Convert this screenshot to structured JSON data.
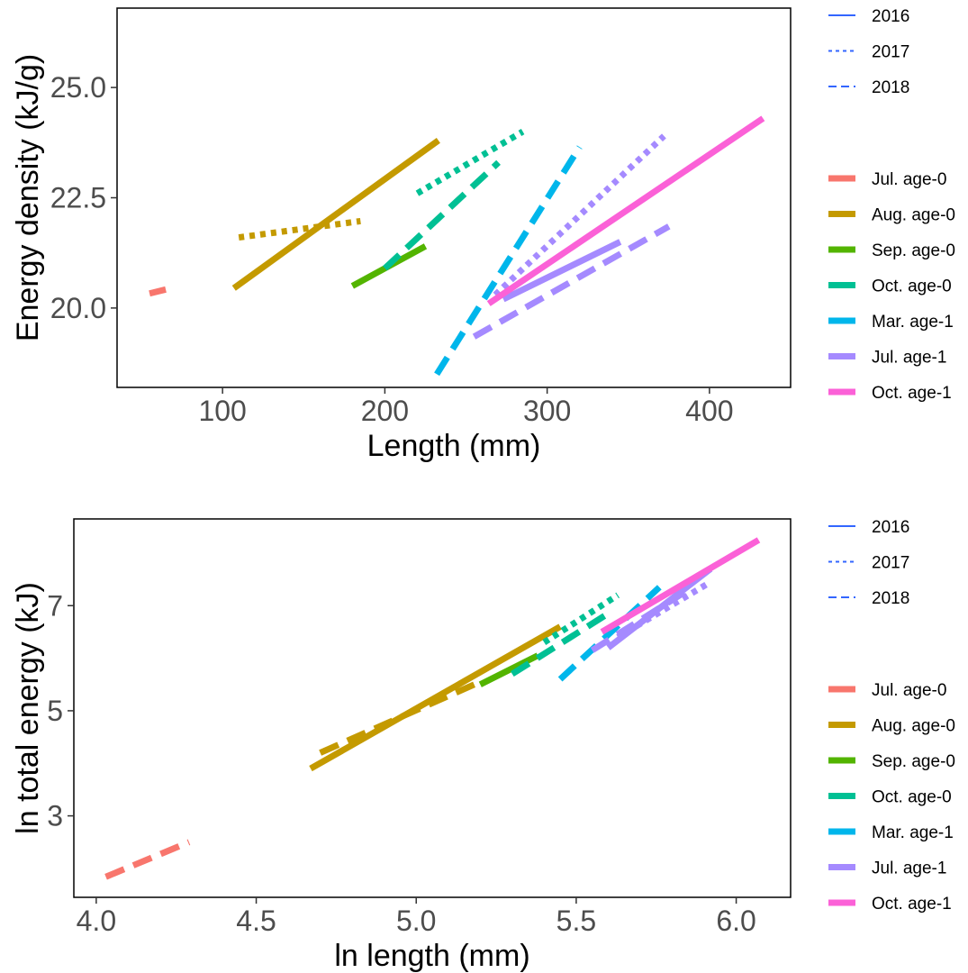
{
  "chart_data": [
    {
      "type": "line",
      "xlabel": "Length (mm)",
      "ylabel": "Energy density (kJ/g)",
      "xlim": [
        35,
        450
      ],
      "ylim": [
        18.2,
        26.8
      ],
      "x_ticks": [
        100,
        200,
        300,
        400
      ],
      "x_tick_labels": [
        "100",
        "200",
        "300",
        "400"
      ],
      "y_ticks": [
        20,
        22.5,
        25
      ],
      "y_tick_labels": [
        "20.0",
        "22.5",
        "25.0"
      ],
      "grid": false,
      "legend_position": "right",
      "year_legend": [
        "2016",
        "2017",
        "2018"
      ],
      "series": [
        {
          "name": "Jul. age-0",
          "color": "#F8766D",
          "year": "2018",
          "x": [
            55,
            65
          ],
          "y": [
            20.33,
            20.42
          ]
        },
        {
          "name": "Aug. age-0",
          "color": "#C49A00",
          "year": "2016",
          "x": [
            107,
            233
          ],
          "y": [
            20.45,
            23.8
          ]
        },
        {
          "name": "Aug. age-0",
          "color": "#C49A00",
          "year": "2017",
          "x": [
            110,
            185
          ],
          "y": [
            21.6,
            21.97
          ]
        },
        {
          "name": "Sep. age-0",
          "color": "#53B400",
          "year": "2016",
          "x": [
            180,
            225
          ],
          "y": [
            20.5,
            21.4
          ]
        },
        {
          "name": "Oct. age-0",
          "color": "#00C094",
          "year": "2017",
          "x": [
            220,
            285
          ],
          "y": [
            22.6,
            24.0
          ]
        },
        {
          "name": "Oct. age-0",
          "color": "#00C094",
          "year": "2018",
          "x": [
            200,
            270
          ],
          "y": [
            20.9,
            23.3
          ]
        },
        {
          "name": "Mar. age-1",
          "color": "#00B6EB",
          "year": "2018",
          "x": [
            232,
            320
          ],
          "y": [
            18.5,
            23.65
          ]
        },
        {
          "name": "Jul. age-1",
          "color": "#A58AFF",
          "year": "2016",
          "x": [
            273,
            345
          ],
          "y": [
            20.2,
            21.5
          ]
        },
        {
          "name": "Jul. age-1",
          "color": "#A58AFF",
          "year": "2017",
          "x": [
            268,
            372
          ],
          "y": [
            20.3,
            23.9
          ]
        },
        {
          "name": "Jul. age-1",
          "color": "#A58AFF",
          "year": "2018",
          "x": [
            255,
            375
          ],
          "y": [
            19.35,
            21.85
          ]
        },
        {
          "name": "Oct. age-1",
          "color": "#FB61D7",
          "year": "2016",
          "x": [
            264,
            433
          ],
          "y": [
            20.1,
            24.3
          ]
        }
      ]
    },
    {
      "type": "line",
      "xlabel": "ln length (mm)",
      "ylabel": "ln total energy (kJ)",
      "xlim": [
        3.93,
        6.17
      ],
      "ylim": [
        1.45,
        8.65
      ],
      "x_ticks": [
        4.0,
        4.5,
        5.0,
        5.5,
        6.0
      ],
      "x_tick_labels": [
        "4.0",
        "4.5",
        "5.0",
        "5.5",
        "6.0"
      ],
      "y_ticks": [
        3,
        5,
        7
      ],
      "y_tick_labels": [
        "3",
        "5",
        "7"
      ],
      "grid": false,
      "legend_position": "right",
      "year_legend": [
        "2016",
        "2017",
        "2018"
      ],
      "series": [
        {
          "name": "Jul. age-0",
          "color": "#F8766D",
          "year": "2018",
          "x": [
            4.03,
            4.29
          ],
          "y": [
            1.84,
            2.5
          ]
        },
        {
          "name": "Aug. age-0",
          "color": "#C49A00",
          "year": "2016",
          "x": [
            4.67,
            5.45
          ],
          "y": [
            3.9,
            6.6
          ]
        },
        {
          "name": "Aug. age-0",
          "color": "#C49A00",
          "year": "2018",
          "x": [
            4.7,
            5.2
          ],
          "y": [
            4.2,
            5.55
          ]
        },
        {
          "name": "Sep. age-0",
          "color": "#53B400",
          "year": "2016",
          "x": [
            5.2,
            5.38
          ],
          "y": [
            5.5,
            6.05
          ]
        },
        {
          "name": "Oct. age-0",
          "color": "#00C094",
          "year": "2017",
          "x": [
            5.4,
            5.63
          ],
          "y": [
            6.3,
            7.2
          ]
        },
        {
          "name": "Oct. age-0",
          "color": "#00C094",
          "year": "2018",
          "x": [
            5.3,
            5.6
          ],
          "y": [
            5.7,
            6.85
          ]
        },
        {
          "name": "Mar. age-1",
          "color": "#00B6EB",
          "year": "2018",
          "x": [
            5.45,
            5.76
          ],
          "y": [
            5.6,
            7.35
          ]
        },
        {
          "name": "Jul. age-1",
          "color": "#A58AFF",
          "year": "2016",
          "x": [
            5.6,
            5.92
          ],
          "y": [
            6.2,
            7.7
          ]
        },
        {
          "name": "Jul. age-1",
          "color": "#A58AFF",
          "year": "2017",
          "x": [
            5.63,
            5.92
          ],
          "y": [
            6.4,
            7.45
          ]
        },
        {
          "name": "Jul. age-1",
          "color": "#A58AFF",
          "year": "2018",
          "x": [
            5.55,
            5.85
          ],
          "y": [
            6.15,
            7.3
          ]
        },
        {
          "name": "Oct. age-1",
          "color": "#FB61D7",
          "year": "2016",
          "x": [
            5.58,
            6.07
          ],
          "y": [
            6.5,
            8.25
          ]
        }
      ]
    }
  ],
  "legend_groups": [
    "Jul. age-0",
    "Aug. age-0",
    "Sep. age-0",
    "Oct. age-0",
    "Mar. age-1",
    "Jul. age-1",
    "Oct. age-1"
  ],
  "legend_group_colors": [
    "#F8766D",
    "#C49A00",
    "#53B400",
    "#00C094",
    "#00B6EB",
    "#A58AFF",
    "#FB61D7"
  ],
  "year_linetypes": {
    "2016": "solid",
    "2017": "dotted",
    "2018": "dashed"
  },
  "year_key_color": "#3366FF"
}
